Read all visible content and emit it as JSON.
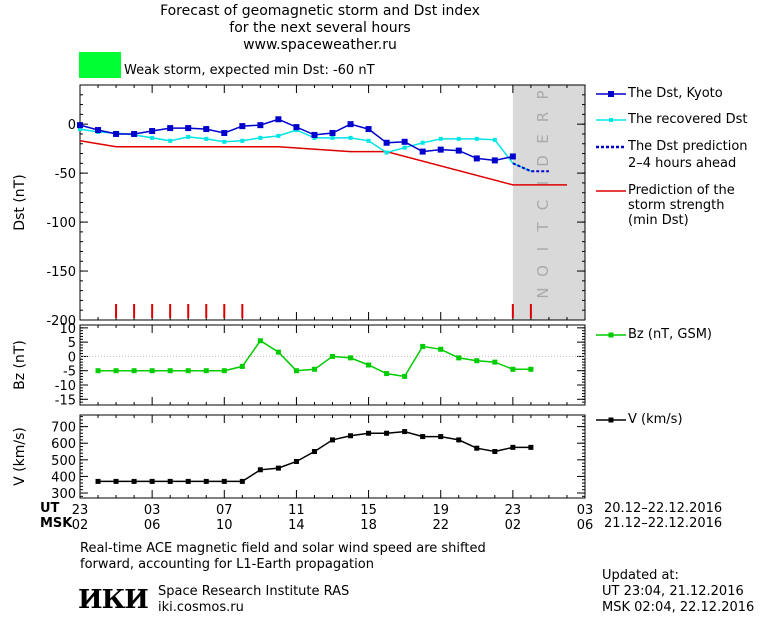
{
  "header": {
    "title_line1": "Forecast of geomagnetic storm and Dst index",
    "title_line2": "for the next several hours",
    "url": "www.spaceweather.ru",
    "storm_text": "Weak storm, expected min Dst: -60 nT",
    "storm_color": "#00ff33"
  },
  "prediction_label": "PREDICTION",
  "colors": {
    "dst": "#0000cc",
    "recovered": "#00e5e5",
    "prediction": "#0000cc",
    "storm": "#dd0000",
    "bz": "#00cc00",
    "v": "#000000",
    "shade": "#d9d9d9",
    "markers": "#dd0000"
  },
  "chart_data": [
    {
      "type": "line",
      "ylabel": "Dst (nT)",
      "ylim": [
        -200,
        40
      ],
      "yticks": [
        "0",
        "-50",
        "-100",
        "-150",
        "-200"
      ],
      "x_hours": [
        0,
        1,
        2,
        3,
        4,
        5,
        6,
        7,
        8,
        9,
        10,
        11,
        12,
        13,
        14,
        15,
        16,
        17,
        18,
        19,
        20,
        21,
        22,
        23,
        24,
        25,
        26
      ],
      "series": [
        {
          "name": "The Dst, Kyoto",
          "x": [
            0,
            1,
            2,
            3,
            4,
            5,
            6,
            7,
            8,
            9,
            10,
            11,
            12,
            13,
            14,
            15,
            16,
            17,
            18,
            19,
            20,
            21,
            22,
            23,
            24
          ],
          "values": [
            -1,
            -6,
            -10,
            -10,
            -7,
            -4,
            -4,
            -5,
            -9,
            -2,
            -1,
            5,
            -3,
            -11,
            -9,
            0,
            -5,
            -19,
            -18,
            -28,
            -26,
            -27,
            -35,
            -37,
            -33
          ]
        },
        {
          "name": "The recovered Dst",
          "x": [
            0,
            1,
            2,
            3,
            4,
            5,
            6,
            7,
            8,
            9,
            10,
            11,
            12,
            13,
            14,
            15,
            16,
            17,
            18,
            19,
            20,
            21,
            22,
            23,
            24,
            25
          ],
          "values": [
            -5,
            -8,
            -9,
            -11,
            -14,
            -17,
            -13,
            -15,
            -18,
            -17,
            -14,
            -12,
            -6,
            -14,
            -14,
            -14,
            -17,
            -29,
            -24,
            -19,
            -15,
            -15,
            -15,
            -16,
            -40,
            -48
          ]
        },
        {
          "name": "The Dst prediction 2-4 hours ahead",
          "x": [
            24,
            25,
            26
          ],
          "values": [
            -40,
            -48,
            -48
          ]
        },
        {
          "name": "Prediction of the storm strength (min Dst)",
          "x": [
            0,
            2,
            11,
            15,
            17,
            24,
            27
          ],
          "values": [
            -17,
            -23,
            -23,
            -28,
            -28,
            -62,
            -62
          ]
        }
      ],
      "storm_markers_hours": [
        2,
        3,
        4,
        5,
        6,
        7,
        8,
        9,
        24,
        25
      ]
    },
    {
      "type": "line",
      "ylabel": "Bz (nT)",
      "ylim": [
        -17,
        11
      ],
      "yticks": [
        "10",
        "5",
        "0",
        "-5",
        "-10",
        "-15"
      ],
      "series": [
        {
          "name": "Bz (nT, GSM)",
          "x": [
            1,
            2,
            3,
            4,
            5,
            6,
            7,
            8,
            9,
            10,
            11,
            12,
            13,
            14,
            15,
            16,
            17,
            18,
            19,
            20,
            21,
            22,
            23,
            24,
            25
          ],
          "values": [
            -5,
            -5,
            -5,
            -5,
            -5,
            -5,
            -5,
            -5,
            -3.5,
            5.5,
            1.5,
            -5,
            -4.5,
            0,
            -0.5,
            -3,
            -6,
            -7,
            3.5,
            2.5,
            -0.5,
            -1.5,
            -2,
            -4.5,
            -4.5
          ]
        }
      ]
    },
    {
      "type": "line",
      "ylabel": "V (km/s)",
      "ylim": [
        270,
        770
      ],
      "yticks": [
        "700",
        "600",
        "500",
        "400",
        "300"
      ],
      "series": [
        {
          "name": "V (km/s)",
          "x": [
            1,
            2,
            3,
            4,
            5,
            6,
            7,
            8,
            9,
            10,
            11,
            12,
            13,
            14,
            15,
            16,
            17,
            18,
            19,
            20,
            21,
            22,
            23,
            24,
            25
          ],
          "values": [
            370,
            370,
            370,
            370,
            370,
            370,
            370,
            370,
            370,
            440,
            450,
            490,
            550,
            620,
            645,
            660,
            660,
            670,
            640,
            640,
            620,
            570,
            550,
            575,
            575
          ]
        }
      ]
    }
  ],
  "xaxis": {
    "ut_label": "UT",
    "msk_label": "MSK",
    "ut_ticks": [
      "23",
      "03",
      "07",
      "11",
      "15",
      "19",
      "23",
      "03"
    ],
    "msk_ticks": [
      "02",
      "06",
      "10",
      "14",
      "18",
      "22",
      "02",
      "06"
    ],
    "ut_range": "20.12–22.12.2016",
    "msk_range": "21.12–22.12.2016"
  },
  "legend": {
    "dst_kyoto": "The Dst, Kyoto",
    "recovered": "The recovered Dst",
    "prediction_line1": "The Dst prediction",
    "prediction_line2": "2–4 hours ahead",
    "storm_line1": "Prediction of the",
    "storm_line2": "storm strength",
    "storm_line3": "(min Dst)",
    "bz": "Bz (nT, GSM)",
    "v": "V (km/s)"
  },
  "footer": {
    "note_line1": "Real-time ACE magnetic field and solar wind speed are shifted",
    "note_line2": "forward, accounting for L1-Earth propagation",
    "logo": "ИКИ",
    "institute": "Space Research Institute RAS",
    "site": "iki.cosmos.ru",
    "updated_label": "Updated at:",
    "updated_ut": "UT   23:04, 21.12.2016",
    "updated_msk": "MSK 02:04, 22.12.2016"
  }
}
